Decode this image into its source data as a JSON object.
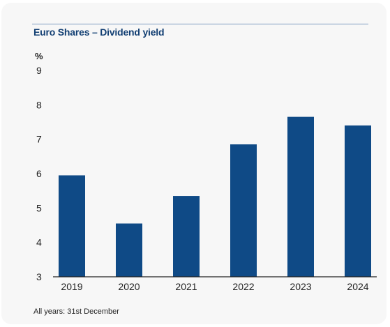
{
  "chart_data": {
    "type": "bar",
    "title": "Euro Shares – Dividend yield",
    "ylabel": "%",
    "xlabel": "",
    "categories": [
      "2019",
      "2020",
      "2021",
      "2022",
      "2023",
      "2024"
    ],
    "values": [
      5.95,
      4.55,
      5.35,
      6.85,
      7.65,
      7.4
    ],
    "ylim": [
      3,
      9
    ],
    "yticks": [
      "3",
      "4",
      "5",
      "6",
      "7",
      "8",
      "9"
    ],
    "grid": false,
    "legend": "none",
    "bar_color": "#0f4a86",
    "footnote": "All years: 31st December"
  }
}
